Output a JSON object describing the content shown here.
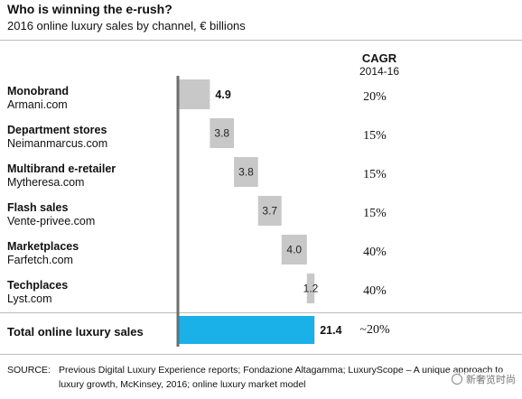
{
  "header": {
    "title": "Who is winning the e-rush?",
    "subtitle": "2016 online luxury sales by channel, € billions"
  },
  "cagr_header": {
    "title": "CAGR",
    "period": "2014-16"
  },
  "chart_data": {
    "type": "bar",
    "subtype": "waterfall",
    "title": "Who is winning the e-rush?",
    "subtitle": "2016 online luxury sales by channel, € billions",
    "categories": [
      "Monobrand",
      "Department stores",
      "Multibrand e-retailer",
      "Flash sales",
      "Marketplaces",
      "Techplaces",
      "Total online luxury sales"
    ],
    "examples": [
      "Armani.com",
      "Neimanmarcus.com",
      "Mytheresa.com",
      "Vente-privee.com",
      "Farfetch.com",
      "Lyst.com",
      ""
    ],
    "value_labels": [
      "4.9",
      "3.8",
      "3.8",
      "3.7",
      "4.0",
      "1.2",
      "21.4"
    ],
    "values": [
      4.9,
      3.8,
      3.8,
      3.7,
      4.0,
      1.2,
      21.4
    ],
    "cagr": [
      "20%",
      "15%",
      "15%",
      "15%",
      "40%",
      "40%",
      "~20%"
    ],
    "colors": {
      "segment": "#c8c8c8",
      "total": "#1ab0e8",
      "axis": "#6e6e6e"
    }
  },
  "source": {
    "label": "SOURCE:",
    "text": "Previous Digital Luxury Experience reports; Fondazione Altagamma; LuxuryScope – A unique approach to luxury growth, McKinsey, 2016; online luxury market model"
  },
  "watermark": {
    "text": "新奢览时尚"
  }
}
